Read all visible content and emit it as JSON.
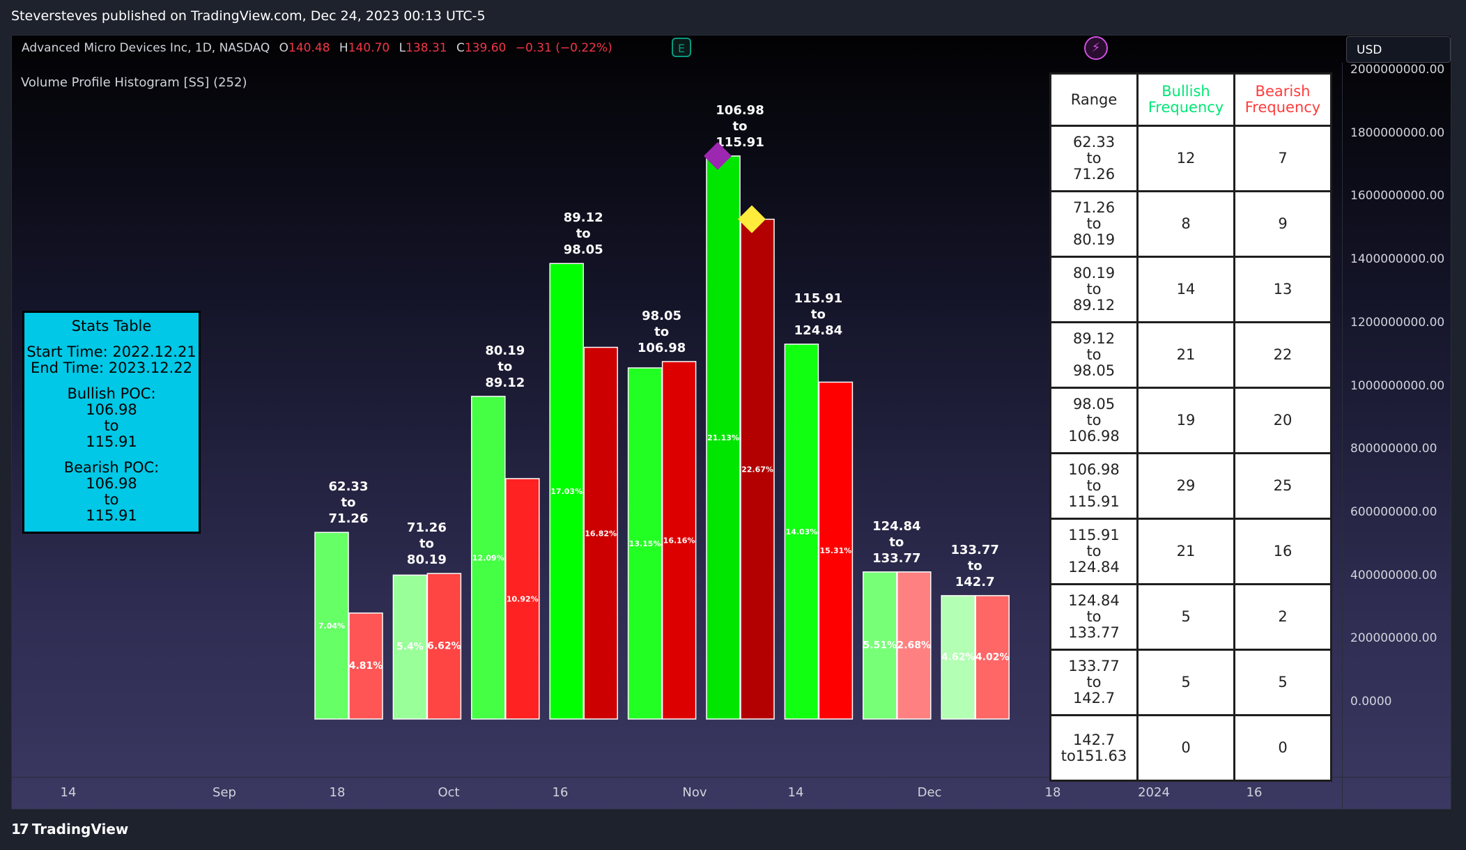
{
  "header": {
    "published": "Steversteves published on TradingView.com, Dec 24, 2023 00:13 UTC-5"
  },
  "symbol": {
    "name": "Advanced Micro Devices Inc, 1D, NASDAQ",
    "o_label": "O",
    "o_value": "140.48",
    "h_label": "H",
    "h_value": "140.70",
    "l_label": "L",
    "l_value": "138.31",
    "c_label": "C",
    "c_value": "139.60",
    "change": "−0.31 (−0.22%)"
  },
  "badges": {
    "earnings": "E",
    "bolt": "⚡"
  },
  "currency": "USD",
  "indicator_title": "Volume Profile Histogram [SS] (252)",
  "price_axis": [
    "2000000000.00",
    "1800000000.00",
    "1600000000.00",
    "1400000000.00",
    "1200000000.00",
    "1000000000.00",
    "800000000.00",
    "600000000.00",
    "400000000.00",
    "200000000.00",
    "0.0000"
  ],
  "time_axis": [
    "14",
    "Sep",
    "18",
    "Oct",
    "16",
    "Nov",
    "14",
    "Dec",
    "18",
    "2024",
    "16"
  ],
  "stats": {
    "title": "Stats Table",
    "start": "Start Time: 2022.12.21",
    "end": "End Time: 2023.12.22",
    "bull_label": "Bullish POC:",
    "bull_from": "106.98",
    "bull_to_word": "to",
    "bull_to": "115.91",
    "bear_label": "Bearish POC:",
    "bear_from": "106.98",
    "bear_to_word": "to",
    "bear_to": "115.91"
  },
  "table": {
    "headers": [
      "Range",
      "Bullish Frequency",
      "Bearish Frequency"
    ],
    "rows": [
      {
        "range": "62.33\nto\n71.26",
        "bull": "12",
        "bear": "7"
      },
      {
        "range": "71.26\nto\n80.19",
        "bull": "8",
        "bear": "9"
      },
      {
        "range": "80.19\nto\n89.12",
        "bull": "14",
        "bear": "13"
      },
      {
        "range": "89.12\nto\n98.05",
        "bull": "21",
        "bear": "22"
      },
      {
        "range": "98.05\nto\n106.98",
        "bull": "19",
        "bear": "20"
      },
      {
        "range": "106.98\nto\n115.91",
        "bull": "29",
        "bear": "25"
      },
      {
        "range": "115.91\nto\n124.84",
        "bull": "21",
        "bear": "16"
      },
      {
        "range": "124.84\nto\n133.77",
        "bull": "5",
        "bear": "2"
      },
      {
        "range": "133.77\nto\n142.7",
        "bull": "5",
        "bear": "5"
      },
      {
        "range": "142.7\nto151.63",
        "bull": "0",
        "bear": "0"
      }
    ]
  },
  "footer": {
    "brand": "TradingView"
  },
  "chart_data": {
    "type": "bar",
    "title": "Volume Profile Histogram [SS] (252)",
    "ylim": [
      0,
      2000000000
    ],
    "categories": [
      "62.33\nto\n71.26",
      "71.26\nto\n80.19",
      "80.19\nto\n89.12",
      "89.12\nto\n98.05",
      "98.05\nto\n106.98",
      "106.98\nto\n115.91",
      "115.91\nto\n124.84",
      "124.84\nto\n133.77",
      "133.77\nto\n142.7"
    ],
    "series": [
      {
        "values": [
          590000000,
          455000000,
          1020000000,
          1440000000,
          1110000000,
          1780000000,
          1185000000,
          465000000,
          390000000
        ],
        "labels": [
          "7.04%",
          "5.4%",
          "12.09%",
          "17.03%",
          "13.15%",
          "21.13%",
          "14.03%",
          "5.51%",
          "4.62%"
        ],
        "colors": [
          "#66ff66",
          "#99ff99",
          "#44ff44",
          "#00ff00",
          "#22ff22",
          "#00e600",
          "#11ff11",
          "#77ff77",
          "#b3ffb3"
        ]
      },
      {
        "values": [
          335000000,
          460000000,
          760000000,
          1175000000,
          1130000000,
          1580000000,
          1065000000,
          465000000,
          390000000
        ],
        "labels": [
          "4.81%",
          "6.62%",
          "10.92%",
          "16.82%",
          "16.16%",
          "22.67%",
          "15.31%",
          "2.68%",
          "4.02%"
        ],
        "colors": [
          "#ff5555",
          "#ff4444",
          "#ff2222",
          "#cc0000",
          "#dd0000",
          "#b30000",
          "#ff0000",
          "#ff8080",
          "#ff6666"
        ]
      }
    ],
    "poc_markers": [
      {
        "series": 0,
        "category": 5,
        "color": "#9c27b0"
      },
      {
        "series": 1,
        "category": 5,
        "color": "#ffeb3b"
      }
    ]
  }
}
